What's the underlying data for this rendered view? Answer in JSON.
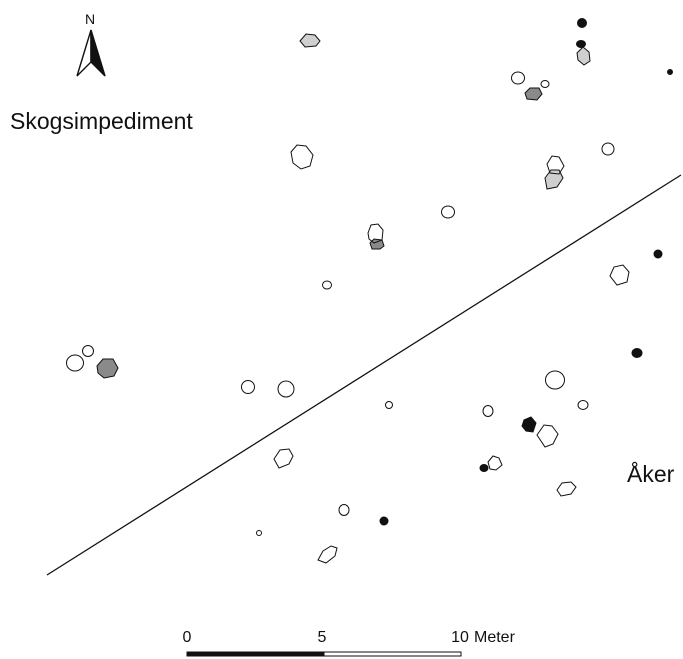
{
  "labels": {
    "north": "N",
    "area_upper": "Skogsimpediment",
    "area_lower": "Åker"
  },
  "scale_bar": {
    "ticks": [
      "0",
      "5",
      "10"
    ],
    "unit": "Meter"
  },
  "legend_colors": {
    "empty": "#ffffff",
    "light": "#cfcfcf",
    "medium": "#8a8a8a",
    "dark": "#111111"
  }
}
